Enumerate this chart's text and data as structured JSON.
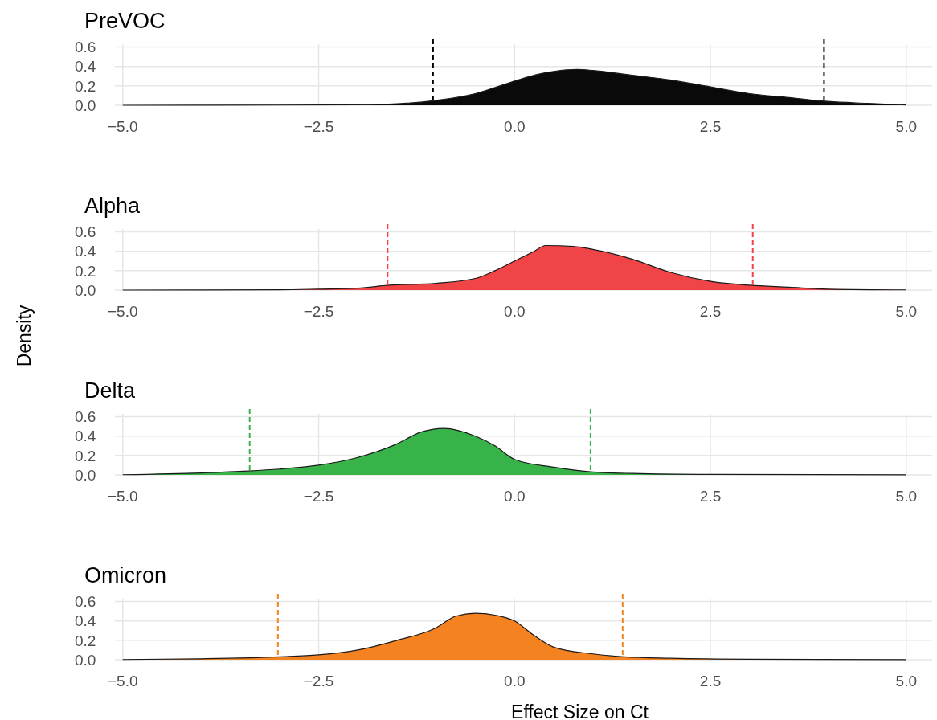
{
  "chart_data": [
    {
      "type": "area",
      "title": "PreVOC",
      "xlim": [
        -5.1,
        5.33
      ],
      "ylim": [
        0,
        0.63
      ],
      "xticks": [
        {
          "value": -5,
          "label": "−5.0"
        },
        {
          "value": -2.5,
          "label": "−2.5"
        },
        {
          "value": 0,
          "label": "0.0"
        },
        {
          "value": 2.5,
          "label": "2.5"
        },
        {
          "value": 5,
          "label": "5.0"
        }
      ],
      "yticks": [
        {
          "value": 0,
          "label": "0.0"
        },
        {
          "value": 0.2,
          "label": "0.2"
        },
        {
          "value": 0.4,
          "label": "0.4"
        },
        {
          "value": 0.6,
          "label": "0.6"
        }
      ],
      "grid": true,
      "series": [
        {
          "color": "#0a0a0a",
          "x": [
            -5,
            -3,
            -2,
            -1.5,
            -1,
            -0.5,
            0,
            0.3,
            0.5,
            0.8,
            1,
            1.5,
            2,
            2.5,
            3,
            3.5,
            4,
            4.5,
            5
          ],
          "values": [
            0,
            0.002,
            0.005,
            0.015,
            0.05,
            0.12,
            0.25,
            0.32,
            0.35,
            0.37,
            0.36,
            0.31,
            0.26,
            0.19,
            0.12,
            0.08,
            0.04,
            0.02,
            0.003
          ]
        }
      ],
      "ref_lines": [
        {
          "axis": "x",
          "value": -1.04,
          "color": "#000000",
          "line_style": "dashed"
        },
        {
          "axis": "x",
          "value": 3.95,
          "color": "#000000",
          "line_style": "dashed"
        }
      ]
    },
    {
      "type": "area",
      "title": "Alpha",
      "ylabel": "Density",
      "xlim": [
        -5.1,
        5.33
      ],
      "ylim": [
        0,
        0.63
      ],
      "xticks": [
        {
          "value": -5,
          "label": "−5.0"
        },
        {
          "value": -2.5,
          "label": "−2.5"
        },
        {
          "value": 0,
          "label": "0.0"
        },
        {
          "value": 2.5,
          "label": "2.5"
        },
        {
          "value": 5,
          "label": "5.0"
        }
      ],
      "yticks": [
        {
          "value": 0,
          "label": "0.0"
        },
        {
          "value": 0.2,
          "label": "0.2"
        },
        {
          "value": 0.4,
          "label": "0.4"
        },
        {
          "value": 0.6,
          "label": "0.6"
        }
      ],
      "grid": true,
      "series": [
        {
          "color": "#f04446",
          "x": [
            -5,
            -3,
            -2.5,
            -2,
            -1.6,
            -1,
            -0.5,
            -0.25,
            0,
            0.25,
            0.4,
            0.75,
            1,
            1.5,
            2,
            2.5,
            3,
            3.5,
            4,
            5
          ],
          "values": [
            0,
            0.003,
            0.01,
            0.02,
            0.05,
            0.07,
            0.12,
            0.2,
            0.3,
            0.4,
            0.46,
            0.45,
            0.42,
            0.32,
            0.18,
            0.09,
            0.05,
            0.03,
            0.01,
            0.002
          ]
        }
      ],
      "ref_lines": [
        {
          "axis": "x",
          "value": -1.62,
          "color": "#f04446",
          "line_style": "dashed"
        },
        {
          "axis": "x",
          "value": 3.04,
          "color": "#f04446",
          "line_style": "dashed"
        }
      ]
    },
    {
      "type": "area",
      "title": "Delta",
      "xlim": [
        -5.1,
        5.33
      ],
      "ylim": [
        0,
        0.63
      ],
      "xticks": [
        {
          "value": -5,
          "label": "−5.0"
        },
        {
          "value": -2.5,
          "label": "−2.5"
        },
        {
          "value": 0,
          "label": "0.0"
        },
        {
          "value": 2.5,
          "label": "2.5"
        },
        {
          "value": 5,
          "label": "5.0"
        }
      ],
      "yticks": [
        {
          "value": 0,
          "label": "0.0"
        },
        {
          "value": 0.2,
          "label": "0.2"
        },
        {
          "value": 0.4,
          "label": "0.4"
        },
        {
          "value": 0.6,
          "label": "0.6"
        }
      ],
      "grid": true,
      "series": [
        {
          "color": "#37b34a",
          "x": [
            -5,
            -4,
            -3.4,
            -3,
            -2.5,
            -2,
            -1.5,
            -1.2,
            -0.9,
            -0.5,
            -0.25,
            0,
            0.5,
            1,
            1.5,
            2.5,
            5
          ],
          "values": [
            0.002,
            0.02,
            0.04,
            0.06,
            0.1,
            0.18,
            0.32,
            0.44,
            0.48,
            0.4,
            0.3,
            0.16,
            0.08,
            0.03,
            0.015,
            0.005,
            0.001
          ]
        }
      ],
      "ref_lines": [
        {
          "axis": "x",
          "value": -3.38,
          "color": "#37b34a",
          "line_style": "dashed"
        },
        {
          "axis": "x",
          "value": 0.97,
          "color": "#37b34a",
          "line_style": "dashed"
        }
      ]
    },
    {
      "type": "area",
      "title": "Omicron",
      "xlabel": "Effect Size on Ct",
      "xlim": [
        -5.1,
        5.33
      ],
      "ylim": [
        0,
        0.63
      ],
      "xticks": [
        {
          "value": -5,
          "label": "−5.0"
        },
        {
          "value": -2.5,
          "label": "−2.5"
        },
        {
          "value": 0,
          "label": "0.0"
        },
        {
          "value": 2.5,
          "label": "2.5"
        },
        {
          "value": 5,
          "label": "5.0"
        }
      ],
      "yticks": [
        {
          "value": 0,
          "label": "0.0"
        },
        {
          "value": 0.2,
          "label": "0.2"
        },
        {
          "value": 0.4,
          "label": "0.4"
        },
        {
          "value": 0.6,
          "label": "0.6"
        }
      ],
      "grid": true,
      "series": [
        {
          "color": "#f58220",
          "x": [
            -5,
            -4,
            -3,
            -2.5,
            -2,
            -1.5,
            -1,
            -0.75,
            -0.5,
            -0.25,
            0,
            0.25,
            0.5,
            1,
            1.4,
            2,
            3,
            5
          ],
          "values": [
            0.002,
            0.01,
            0.03,
            0.05,
            0.1,
            0.2,
            0.33,
            0.45,
            0.48,
            0.46,
            0.4,
            0.25,
            0.13,
            0.06,
            0.03,
            0.015,
            0.005,
            0.001
          ]
        }
      ],
      "ref_lines": [
        {
          "axis": "x",
          "value": -3.02,
          "color": "#f58220",
          "line_style": "dashed"
        },
        {
          "axis": "x",
          "value": 1.38,
          "color": "#f58220",
          "line_style": "dashed"
        }
      ]
    }
  ]
}
